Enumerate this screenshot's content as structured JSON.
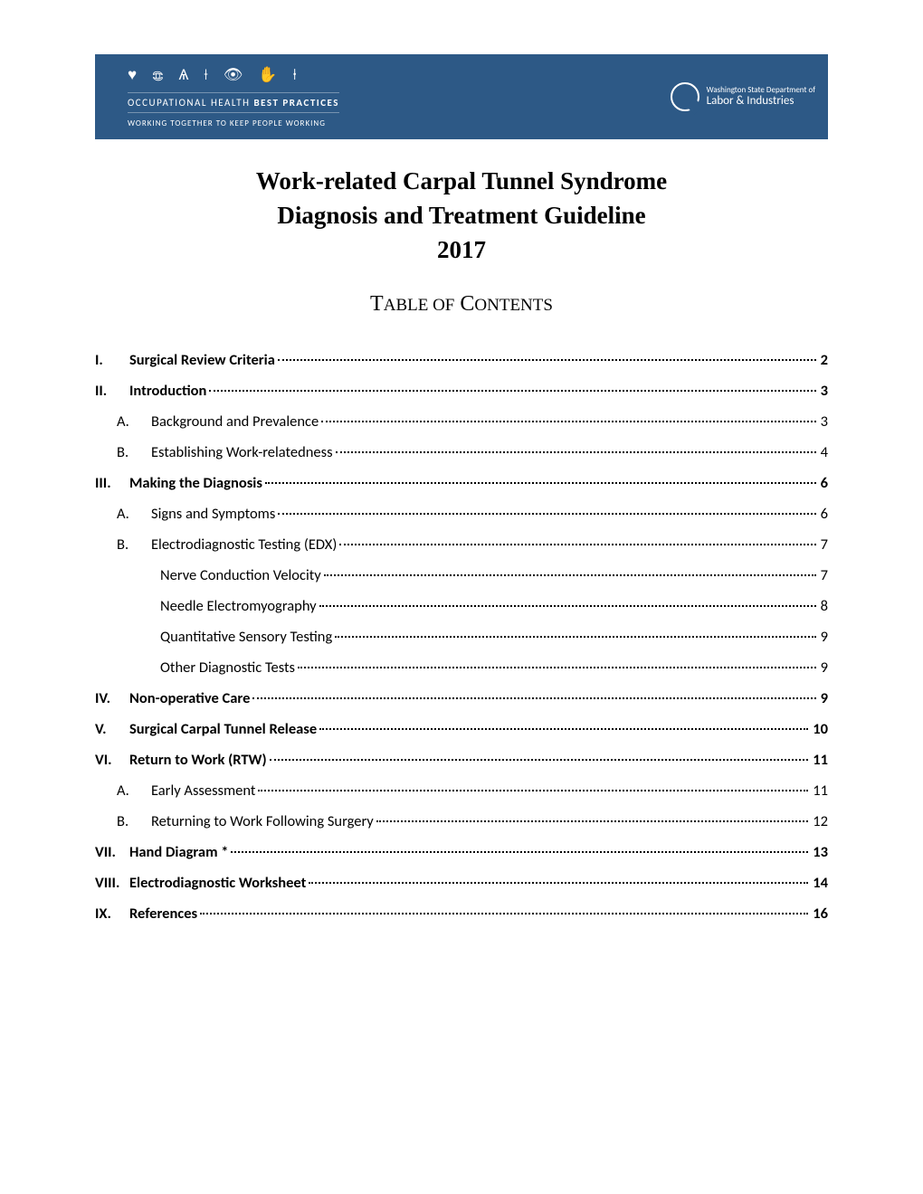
{
  "banner": {
    "line1_a": "OCCUPATIONAL HEALTH ",
    "line1_b": "BEST PRACTICES",
    "line2": "WORKING TOGETHER TO KEEP PEOPLE WORKING",
    "dept_line1": "Washington State Department of",
    "dept_line2": "Labor & Industries",
    "bg_color": "#2d5986"
  },
  "title_lines": [
    "Work-related Carpal Tunnel Syndrome",
    "Diagnosis and Treatment Guideline",
    "2017"
  ],
  "toc_header": "Table of Contents",
  "toc": [
    {
      "level": 1,
      "num": "I.",
      "text": "Surgical Review Criteria",
      "page": "2"
    },
    {
      "level": 1,
      "num": "II.",
      "text": "Introduction",
      "page": "3"
    },
    {
      "level": 2,
      "num": "A.",
      "text": "Background and Prevalence",
      "page": "3"
    },
    {
      "level": 2,
      "num": "B.",
      "text": "Establishing Work-relatedness",
      "page": "4"
    },
    {
      "level": 1,
      "num": "III.",
      "text": "Making the Diagnosis",
      "page": "6"
    },
    {
      "level": 2,
      "num": "A.",
      "text": "Signs and Symptoms",
      "page": "6"
    },
    {
      "level": 2,
      "num": "B.",
      "text": "Electrodiagnostic Testing (EDX)",
      "page": "7"
    },
    {
      "level": 3,
      "num": "",
      "text": "Nerve Conduction Velocity",
      "page": "7"
    },
    {
      "level": 3,
      "num": "",
      "text": "Needle Electromyography",
      "page": "8"
    },
    {
      "level": 3,
      "num": "",
      "text": "Quantitative Sensory Testing",
      "page": "9"
    },
    {
      "level": 3,
      "num": "",
      "text": "Other Diagnostic Tests",
      "page": "9"
    },
    {
      "level": 1,
      "num": "IV.",
      "text": "Non-operative Care",
      "page": "9"
    },
    {
      "level": 1,
      "num": "V.",
      "text": "Surgical Carpal Tunnel Release",
      "page": "10"
    },
    {
      "level": 1,
      "num": "VI.",
      "text": "Return to Work (RTW)",
      "page": "11"
    },
    {
      "level": 2,
      "num": "A.",
      "text": "Early Assessment",
      "page": "11"
    },
    {
      "level": 2,
      "num": "B.",
      "text": "Returning to Work Following Surgery",
      "page": "12"
    },
    {
      "level": 1,
      "num": "VII.",
      "text": "Hand Diagram *",
      "page": "13"
    },
    {
      "level": 1,
      "num": "VIII.",
      "text": "Electrodiagnostic Worksheet",
      "page": "14"
    },
    {
      "level": 1,
      "num": "IX.",
      "text": "References",
      "page": "16"
    }
  ]
}
